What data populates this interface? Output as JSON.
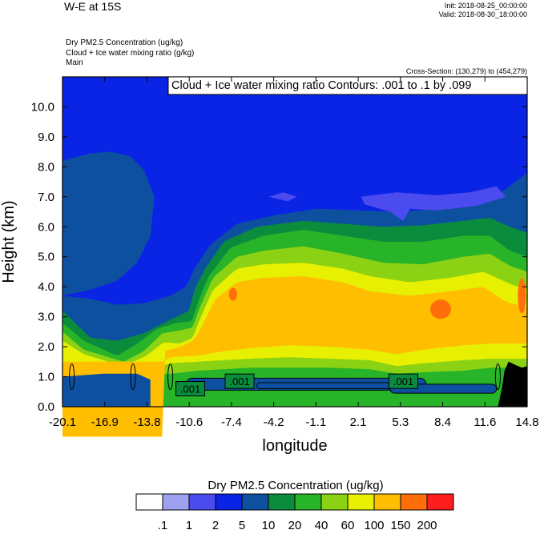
{
  "header": {
    "title": "W-E at 15S",
    "init": "Init: 2018-08-25_00:00:00",
    "valid": "Valid: 2018-08-30_18:00:00",
    "fields": [
      "Dry PM2.5 Concentration   (ug/kg)",
      "Cloud + Ice water mixing ratio   (g/kg)",
      "Main"
    ],
    "cross_section": "Cross-Section: (130,279) to (454,279)"
  },
  "colors": {
    "levels": [
      "#ffffff",
      "#a0a0f0",
      "#4b4bf0",
      "#0a24e6",
      "#0e50a0",
      "#0a8c3c",
      "#28b428",
      "#8cd214",
      "#e6f000",
      "#ffbe00",
      "#ff6e0a",
      "#ff1e1e"
    ],
    "terrain": "#000000"
  },
  "chart_data": {
    "type": "heatmap",
    "title": "Cloud + Ice water mixing ratio Contours: .001 to .1 by .099",
    "xlabel": "longitude",
    "ylabel": "Height (km)",
    "xlim": [
      -20.1,
      14.8
    ],
    "ylim": [
      0.0,
      11.0
    ],
    "x_ticks": [
      "-20.1",
      "-16.9",
      "-13.8",
      "-10.6",
      "-7.4",
      "-4.2",
      "-1.1",
      "2.1",
      "5.3",
      "8.4",
      "11.6",
      "14.8"
    ],
    "y_ticks": [
      "0.0",
      "1.0",
      "2.0",
      "3.0",
      "4.0",
      "5.0",
      "6.0",
      "7.0",
      "8.0",
      "9.0",
      "10.0"
    ],
    "contour_labels": [
      {
        "text": ".001",
        "lon": -10.5,
        "height": 0.6
      },
      {
        "text": ".001",
        "lon": -6.8,
        "height": 0.85
      },
      {
        "text": ".001",
        "lon": 5.5,
        "height": 0.85
      }
    ],
    "colorbar": {
      "title": "Dry PM2.5 Concentration  (ug/kg)",
      "labels": [
        ".1",
        "1",
        "2",
        "5",
        "10",
        "20",
        "40",
        "60",
        "100",
        "150",
        "200"
      ]
    }
  }
}
